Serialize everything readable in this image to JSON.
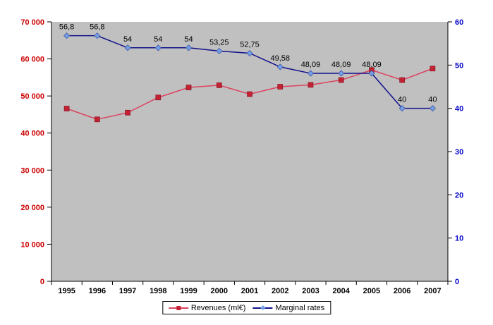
{
  "chart_data": {
    "type": "line",
    "categories": [
      "1995",
      "1996",
      "1997",
      "1998",
      "1999",
      "2000",
      "2001",
      "2002",
      "2003",
      "2004",
      "2005",
      "2006",
      "2007"
    ],
    "series": [
      {
        "name": "Revenues (ml€)",
        "axis": "left",
        "marker": "square",
        "line_color": "#dc4260",
        "marker_color": "#c42233",
        "marker_border": "#8b1a26",
        "values": [
          46600,
          43700,
          45500,
          49600,
          52300,
          52900,
          50500,
          52500,
          53000,
          54300,
          57000,
          54300,
          57400
        ]
      },
      {
        "name": "Marginal rates",
        "axis": "right",
        "marker": "diamond",
        "line_color": "#10108c",
        "marker_color": "#74a0e8",
        "marker_border": "#3c50a0",
        "values": [
          56.8,
          56.8,
          54,
          54,
          54,
          53.25,
          52.75,
          49.58,
          48.09,
          48.09,
          48.09,
          40,
          40
        ],
        "labels": [
          "56,8",
          "56,8",
          "54",
          "54",
          "54",
          "53,25",
          "52,75",
          "49,58",
          "48,09",
          "48,09",
          "48,09",
          "40",
          "40"
        ]
      }
    ],
    "left_axis": {
      "min": 0,
      "max": 70000,
      "step": 10000,
      "color": "#cc0000",
      "tick_labels": [
        "0",
        "10 000",
        "20 000",
        "30 000",
        "40 000",
        "50 000",
        "60 000",
        "70 000"
      ]
    },
    "right_axis": {
      "min": 0,
      "max": 60,
      "step": 10,
      "color": "#0000cc",
      "tick_labels": [
        "0",
        "10",
        "20",
        "30",
        "40",
        "50",
        "60"
      ]
    },
    "x_axis": {
      "color": "#000000"
    },
    "plot_background": "#c0c0c0",
    "axis_line_color": "#000000",
    "data_label_color": "#000000",
    "legend_position": "bottom",
    "title": "",
    "xlabel": "",
    "ylabel": ""
  }
}
